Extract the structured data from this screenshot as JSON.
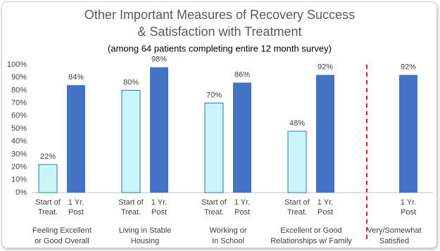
{
  "chart_data": {
    "type": "bar",
    "title": [
      "Other Important Measures of Recovery Success",
      "& Satisfaction with Treatment"
    ],
    "subtitle": "(among 64 patients completing entire 12 month survey)",
    "categories": [
      [
        "Feeling Excellent",
        "or Good Overall"
      ],
      [
        "Living in Stable",
        "Housing"
      ],
      [
        "Working or",
        "In School"
      ],
      [
        "Excellent or Good",
        "Relationships w/ Family"
      ],
      [
        "Very/Somewhat",
        "Satisfied"
      ]
    ],
    "series": [
      {
        "name": "Start of Treat.",
        "color": "#c9f5fb",
        "values": [
          22,
          80,
          70,
          48,
          null
        ],
        "value_labels": [
          "22%",
          "80%",
          "70%",
          "48%",
          null
        ]
      },
      {
        "name": "1 Yr. Post",
        "color": "#4472c4",
        "values": [
          84,
          98,
          86,
          92,
          92
        ],
        "value_labels": [
          "84%",
          "98%",
          "86%",
          "92%",
          "92%"
        ]
      }
    ],
    "ylim": [
      0,
      100
    ],
    "yticks": [
      {
        "value": 0,
        "label": "0%"
      },
      {
        "value": 10,
        "label": "10%"
      },
      {
        "value": 20,
        "label": "20%"
      },
      {
        "value": 30,
        "label": "30%"
      },
      {
        "value": 40,
        "label": "40%"
      },
      {
        "value": 50,
        "label": "50%"
      },
      {
        "value": 60,
        "label": "60%"
      },
      {
        "value": 70,
        "label": "70%"
      },
      {
        "value": 80,
        "label": "80%"
      },
      {
        "value": 90,
        "label": "90%"
      },
      {
        "value": 100,
        "label": "100%"
      }
    ],
    "grid": false
  }
}
